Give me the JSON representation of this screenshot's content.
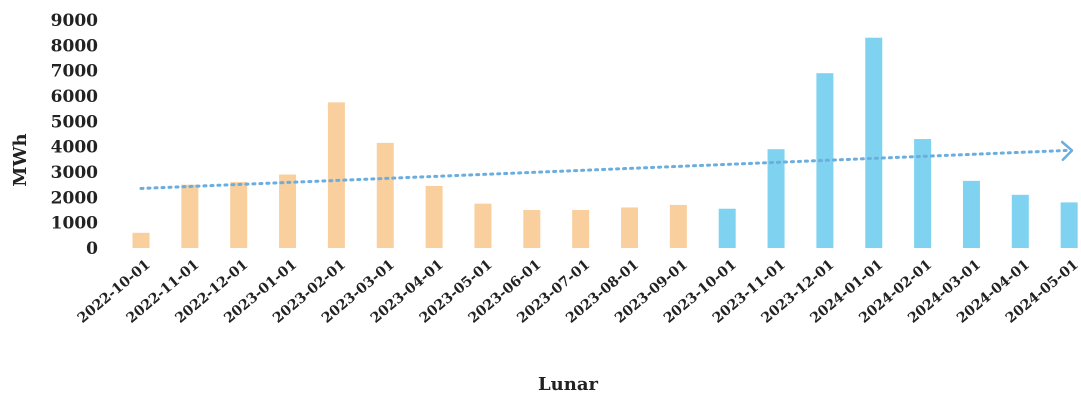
{
  "chart_data": {
    "type": "bar",
    "title": "",
    "xlabel": "Lunar",
    "ylabel": "MWh",
    "ylim": [
      0,
      9000
    ],
    "yticks": [
      0,
      1000,
      2000,
      3000,
      4000,
      5000,
      6000,
      7000,
      8000,
      9000
    ],
    "grid": false,
    "categories": [
      "2022-10-01",
      "2022-11-01",
      "2022-12-01",
      "2023-01-01",
      "2023-02-01",
      "2023-03-01",
      "2023-04-01",
      "2023-05-01",
      "2023-06-01",
      "2023-07-01",
      "2023-08-01",
      "2023-09-01",
      "2023-10-01",
      "2023-11-01",
      "2023-12-01",
      "2024-01-01",
      "2024-02-01",
      "2024-03-01",
      "2024-04-01",
      "2024-05-01"
    ],
    "values": [
      600,
      2500,
      2600,
      2900,
      5750,
      4150,
      2450,
      1750,
      1500,
      1500,
      1600,
      1700,
      1550,
      3900,
      6900,
      8300,
      4300,
      2650,
      2100,
      1800
    ],
    "bar_colors": [
      "#f9cf9d",
      "#f9cf9d",
      "#f9cf9d",
      "#f9cf9d",
      "#f9cf9d",
      "#f9cf9d",
      "#f9cf9d",
      "#f9cf9d",
      "#f9cf9d",
      "#f9cf9d",
      "#f9cf9d",
      "#f9cf9d",
      "#7fd3f1",
      "#7fd3f1",
      "#7fd3f1",
      "#7fd3f1",
      "#7fd3f1",
      "#7fd3f1",
      "#7fd3f1",
      "#7fd3f1"
    ],
    "trendline": {
      "style": "dotted",
      "color": "#6aaee0",
      "start_value": 2350,
      "end_value": 3850,
      "arrow": true
    }
  }
}
